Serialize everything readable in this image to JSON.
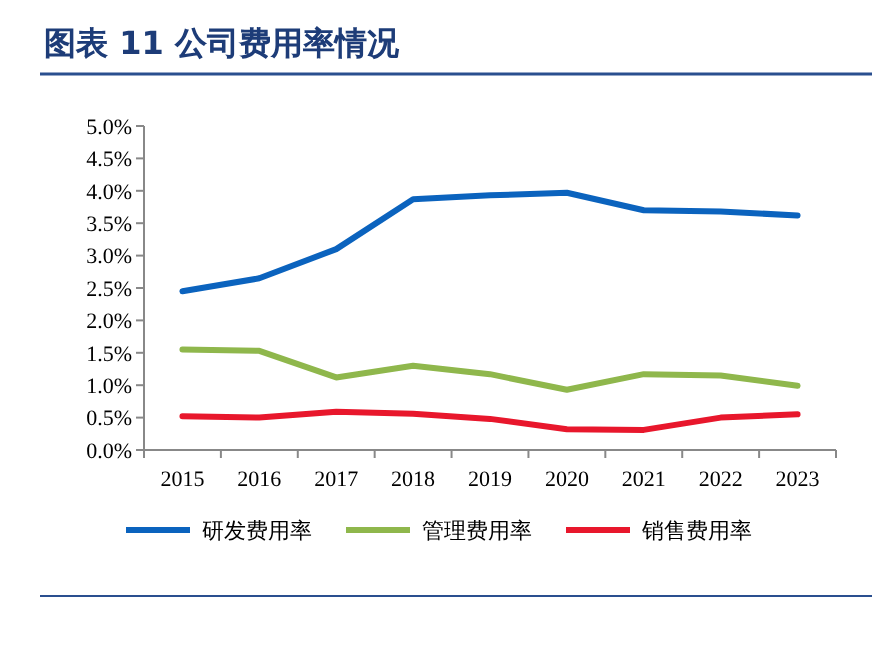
{
  "chart_data": {
    "type": "line",
    "title": "图表 11 公司费用率情况",
    "categories": [
      "2015",
      "2016",
      "2017",
      "2018",
      "2019",
      "2020",
      "2021",
      "2022",
      "2023"
    ],
    "series": [
      {
        "name": "研发费用率",
        "color": "#0b63be",
        "values": [
          2.45,
          2.65,
          3.1,
          3.87,
          3.93,
          3.97,
          3.7,
          3.68,
          3.62
        ]
      },
      {
        "name": "管理费用率",
        "color": "#8fb74c",
        "values": [
          1.55,
          1.53,
          1.12,
          1.3,
          1.17,
          0.93,
          1.17,
          1.15,
          0.99
        ]
      },
      {
        "name": "销售费用率",
        "color": "#e8172c",
        "values": [
          0.52,
          0.5,
          0.59,
          0.56,
          0.48,
          0.32,
          0.31,
          0.5,
          0.55
        ]
      }
    ],
    "ylim": [
      0,
      5
    ],
    "yticks": [
      {
        "value": 0,
        "label": "0.0%"
      },
      {
        "value": 0.5,
        "label": "0.5%"
      },
      {
        "value": 1,
        "label": "1.0%"
      },
      {
        "value": 1.5,
        "label": "1.5%"
      },
      {
        "value": 2,
        "label": "2.0%"
      },
      {
        "value": 2.5,
        "label": "2.5%"
      },
      {
        "value": 3,
        "label": "3.0%"
      },
      {
        "value": 3.5,
        "label": "3.5%"
      },
      {
        "value": 4,
        "label": "4.0%"
      },
      {
        "value": 4.5,
        "label": "4.5%"
      },
      {
        "value": 5,
        "label": "5.0%"
      }
    ],
    "legend": "bottom",
    "grid": false,
    "marker": "none",
    "line_style": "solid"
  }
}
